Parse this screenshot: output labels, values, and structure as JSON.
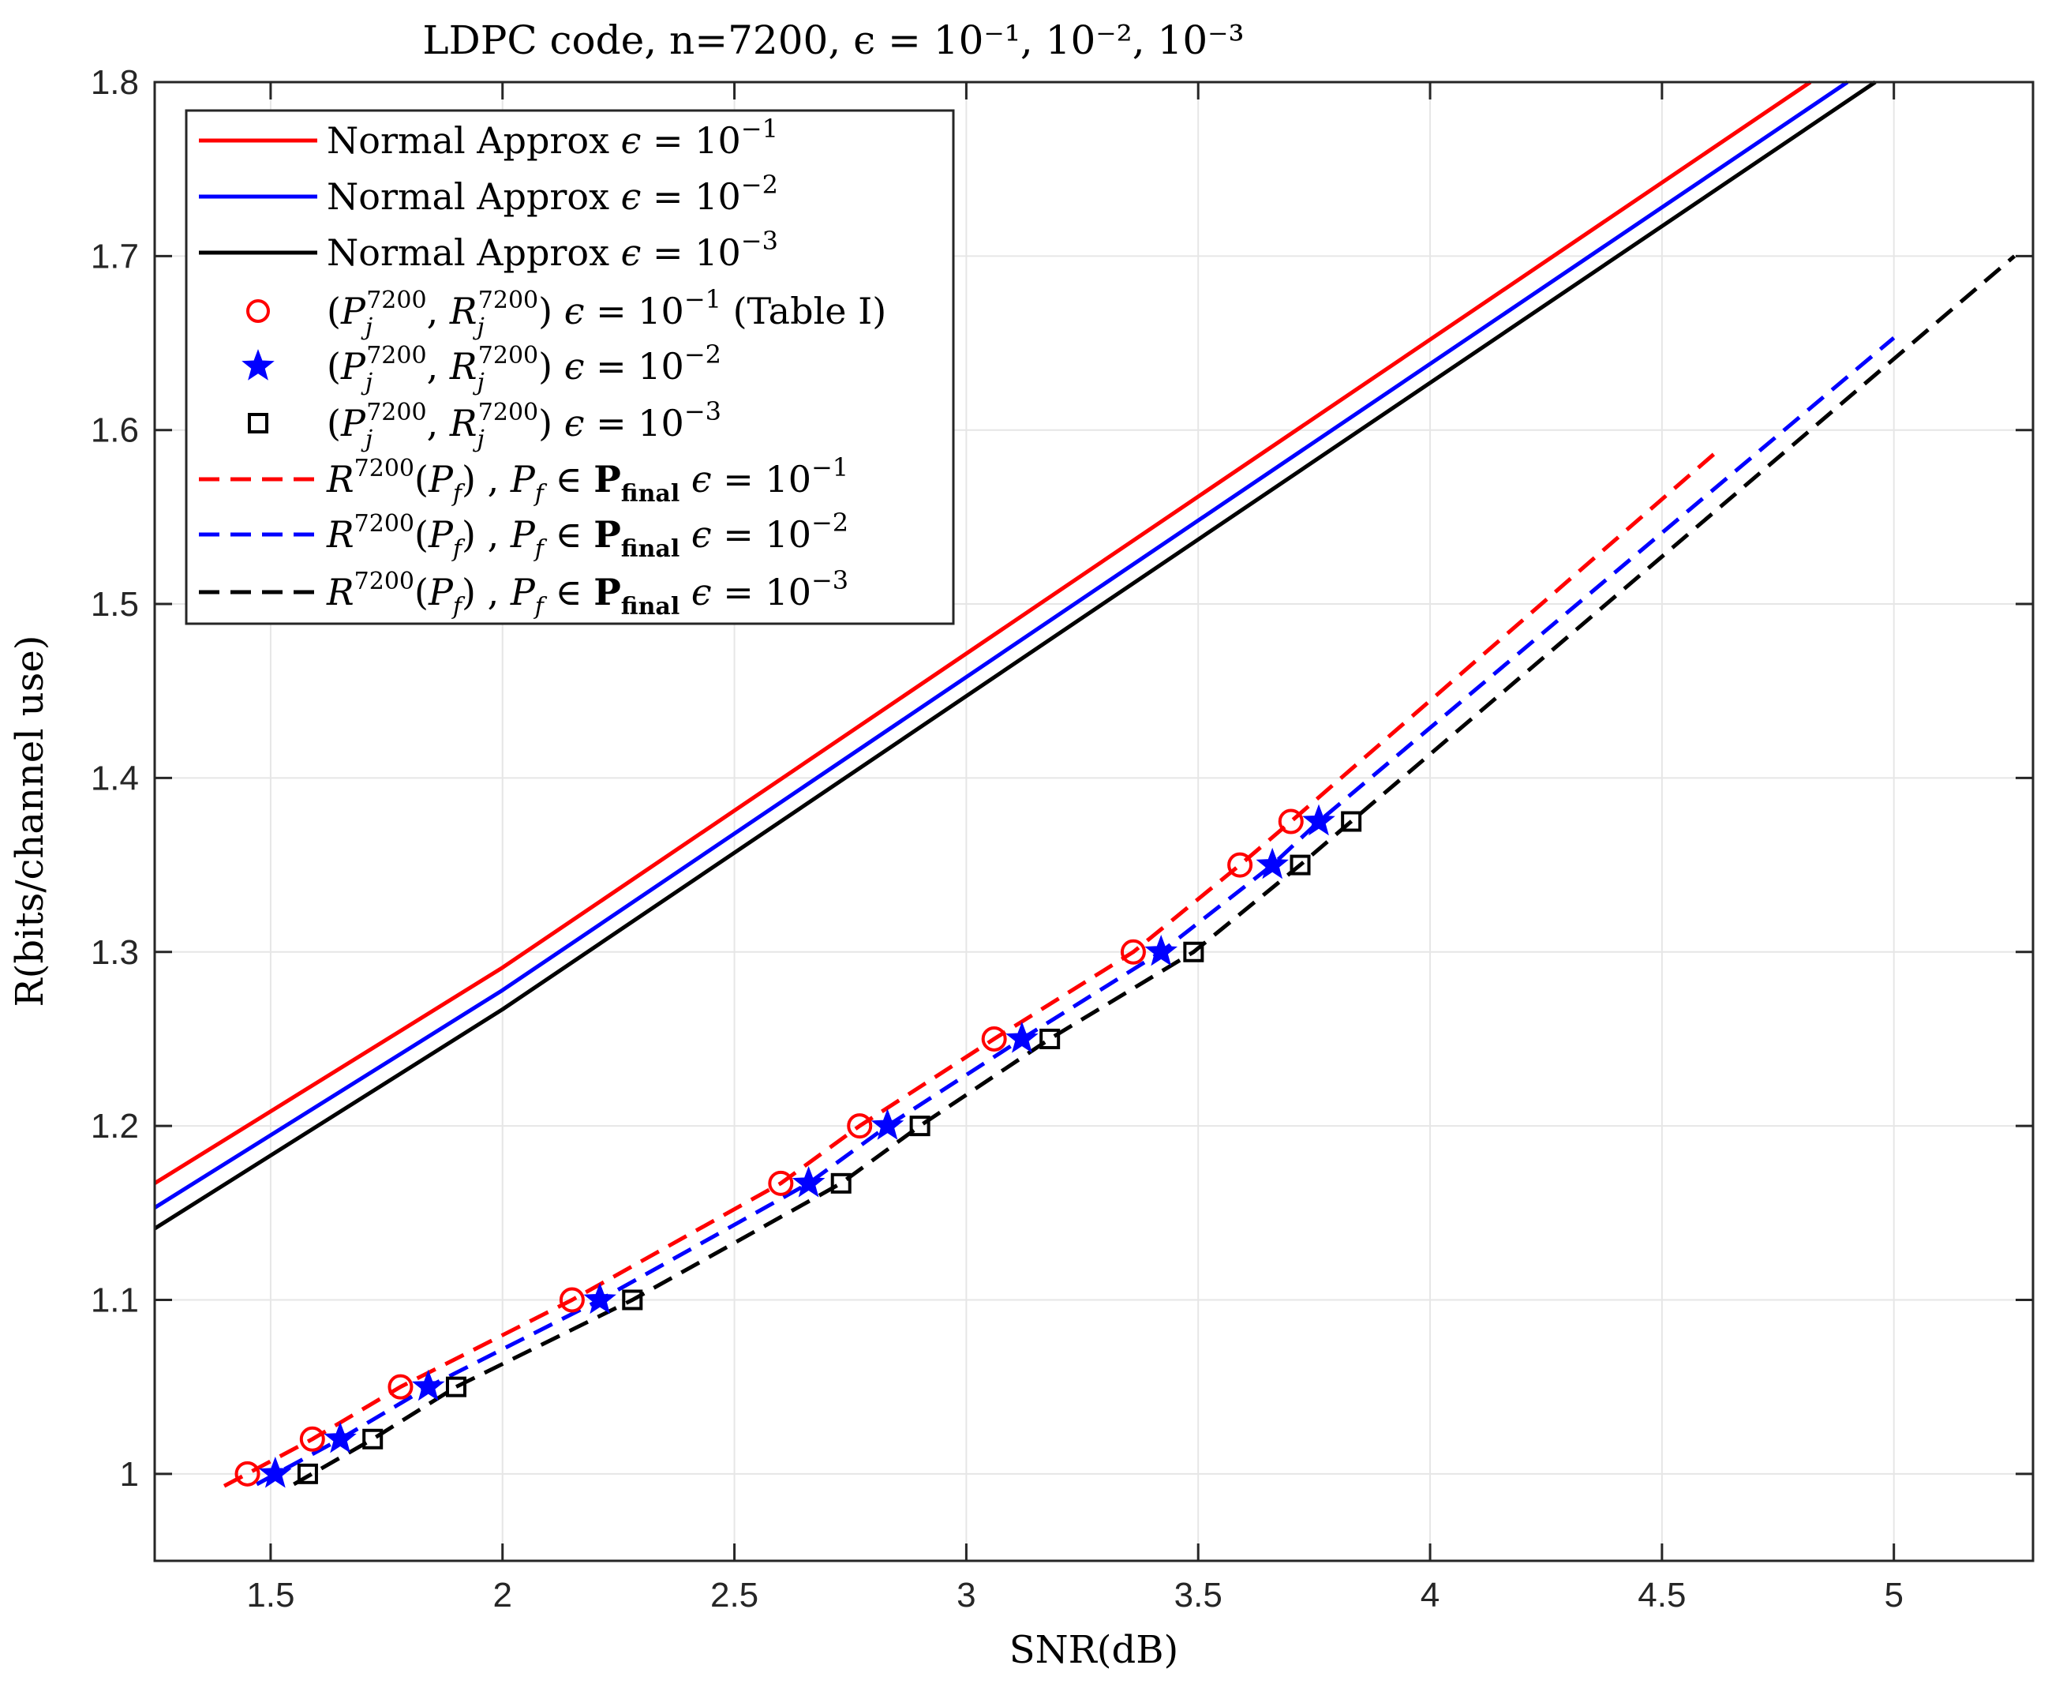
{
  "chart_data": {
    "type": "line",
    "title": "LDPC code, n=7200, ϵ = 10⁻¹, 10⁻², 10⁻³",
    "xlabel": "SNR(dB)",
    "ylabel": "R(bits/channel use)",
    "xlim": [
      1.25,
      5.3
    ],
    "ylim": [
      0.95,
      1.8
    ],
    "xticks": [
      1.5,
      2,
      2.5,
      3,
      3.5,
      4,
      4.5,
      5
    ],
    "yticks": [
      1,
      1.1,
      1.2,
      1.3,
      1.4,
      1.5,
      1.6,
      1.7,
      1.8
    ],
    "xtick_labels": [
      "1.5",
      "2",
      "2.5",
      "3",
      "3.5",
      "4",
      "4.5",
      "5"
    ],
    "ytick_labels": [
      "1",
      "1.1",
      "1.2",
      "1.3",
      "1.4",
      "1.5",
      "1.6",
      "1.7",
      "1.8"
    ],
    "grid": true,
    "legend_position": "top-left",
    "colors": {
      "red": "#ff0000",
      "blue": "#0000ff",
      "black": "#000000",
      "grid": "#e6e6e6"
    },
    "series": [
      {
        "name": "Normal Approx ϵ = 10⁻¹",
        "style": "solid",
        "color": "red",
        "x": [
          1.25,
          2.0,
          4.82
        ],
        "y": [
          1.167,
          1.291,
          1.8
        ]
      },
      {
        "name": "Normal Approx ϵ = 10⁻²",
        "style": "solid",
        "color": "blue",
        "x": [
          1.25,
          2.0,
          4.9
        ],
        "y": [
          1.153,
          1.278,
          1.8
        ]
      },
      {
        "name": "Normal Approx ϵ = 10⁻³",
        "style": "solid",
        "color": "black",
        "x": [
          1.25,
          2.0,
          4.96
        ],
        "y": [
          1.141,
          1.267,
          1.8
        ]
      },
      {
        "name": "(P_j^7200, R_j^7200) ϵ = 10⁻¹ (Table I)",
        "style": "marker",
        "marker": "circle",
        "color": "red",
        "x": [
          1.45,
          1.59,
          1.78,
          2.15,
          2.6,
          2.77,
          3.06,
          3.36,
          3.59,
          3.7
        ],
        "y": [
          1.0,
          1.02,
          1.05,
          1.1,
          1.167,
          1.2,
          1.25,
          1.3,
          1.35,
          1.375
        ]
      },
      {
        "name": "(P_j^7200, R_j^7200) ϵ = 10⁻²",
        "style": "marker",
        "marker": "star",
        "color": "blue",
        "x": [
          1.51,
          1.65,
          1.84,
          2.21,
          2.66,
          2.83,
          3.12,
          3.42,
          3.66,
          3.76
        ],
        "y": [
          1.0,
          1.02,
          1.05,
          1.1,
          1.167,
          1.2,
          1.25,
          1.3,
          1.35,
          1.375
        ]
      },
      {
        "name": "(P_j^7200, R_j^7200) ϵ = 10⁻³",
        "style": "marker",
        "marker": "square",
        "color": "black",
        "x": [
          1.58,
          1.72,
          1.9,
          2.28,
          2.73,
          2.9,
          3.18,
          3.49,
          3.72,
          3.83
        ],
        "y": [
          1.0,
          1.02,
          1.05,
          1.1,
          1.167,
          1.2,
          1.25,
          1.3,
          1.35,
          1.375
        ]
      },
      {
        "name": "R^7200(P_f), P_f ∈ P_final ϵ = 10⁻¹",
        "style": "dashed",
        "color": "red",
        "x": [
          1.4,
          1.59,
          1.78,
          2.15,
          2.6,
          2.77,
          3.06,
          3.36,
          3.59,
          3.7,
          4.62
        ],
        "y": [
          0.993,
          1.02,
          1.05,
          1.1,
          1.167,
          1.2,
          1.25,
          1.3,
          1.35,
          1.375,
          1.588
        ]
      },
      {
        "name": "R^7200(P_f), P_f ∈ P_final ϵ = 10⁻²",
        "style": "dashed",
        "color": "blue",
        "x": [
          1.47,
          1.65,
          1.84,
          2.21,
          2.66,
          2.83,
          3.12,
          3.42,
          3.66,
          3.76,
          5.0
        ],
        "y": [
          0.994,
          1.02,
          1.05,
          1.1,
          1.167,
          1.2,
          1.25,
          1.3,
          1.35,
          1.375,
          1.653
        ]
      },
      {
        "name": "R^7200(P_f), P_f ∈ P_final ϵ = 10⁻³",
        "style": "dashed",
        "color": "black",
        "x": [
          1.55,
          1.72,
          1.9,
          2.28,
          2.73,
          2.9,
          3.18,
          3.49,
          3.72,
          3.83,
          5.26
        ],
        "y": [
          0.994,
          1.02,
          1.05,
          1.1,
          1.167,
          1.2,
          1.25,
          1.3,
          1.35,
          1.375,
          1.7
        ]
      }
    ]
  }
}
